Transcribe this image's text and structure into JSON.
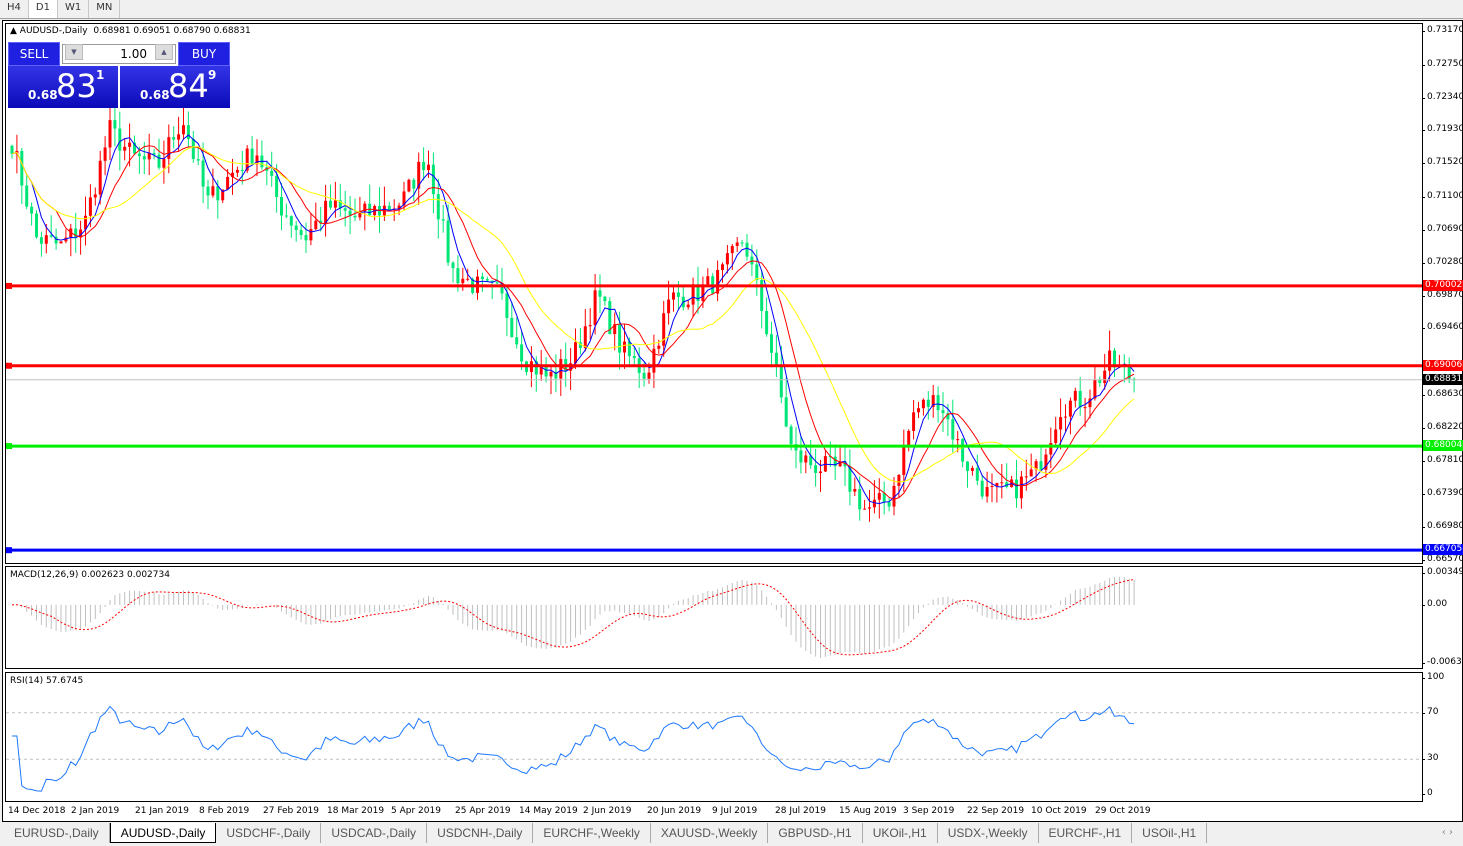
{
  "timeframes": [
    {
      "label": "H4",
      "active": false
    },
    {
      "label": "D1",
      "active": true
    },
    {
      "label": "W1",
      "active": false
    },
    {
      "label": "MN",
      "active": false
    }
  ],
  "chart_header": {
    "symbol": "AUDUSD-,Daily",
    "ohlc": "0.68981 0.69051 0.68790 0.68831"
  },
  "one_click": {
    "sell_label": "SELL",
    "buy_label": "BUY",
    "lot": "1.00",
    "sell_prefix": "0.68",
    "sell_big": "83",
    "sell_pip": "1",
    "buy_prefix": "0.68",
    "buy_big": "84",
    "buy_pip": "9",
    "color": "#2020e0"
  },
  "price_axis": {
    "ticks": [
      "0.73170",
      "0.72750",
      "0.72340",
      "0.71930",
      "0.71520",
      "0.71100",
      "0.70690",
      "0.70280",
      "0.69870",
      "0.69460",
      "0.68630",
      "0.68220",
      "0.67810",
      "0.67390",
      "0.66980",
      "0.66570"
    ],
    "range": [
      0.6657,
      0.7317
    ]
  },
  "levels": [
    {
      "price": 0.70002,
      "label": "0.70002",
      "color": "#ff0000"
    },
    {
      "price": 0.69006,
      "label": "0.69006",
      "color": "#ff0000"
    },
    {
      "price": 0.68004,
      "label": "0.68004",
      "color": "#00ee00"
    },
    {
      "price": 0.66705,
      "label": "0.66705",
      "color": "#0000ff"
    }
  ],
  "current_price": {
    "price": 0.68831,
    "label": "0.68831"
  },
  "macd": {
    "label": "MACD(12,26,9) 0.002623 0.002734",
    "ticks": [
      "0.00349",
      "0.00",
      "-0.00637"
    ],
    "range": [
      -0.00637,
      0.00349
    ]
  },
  "rsi": {
    "label": "RSI(14) 57.6745",
    "ticks": [
      "100",
      "70",
      "30",
      "0"
    ],
    "levels": [
      70,
      30
    ],
    "color": "#1e78ff"
  },
  "dates": [
    "14 Dec 2018",
    "2 Jan 2019",
    "21 Jan 2019",
    "8 Feb 2019",
    "27 Feb 2019",
    "18 Mar 2019",
    "5 Apr 2019",
    "25 Apr 2019",
    "14 May 2019",
    "2 Jun 2019",
    "20 Jun 2019",
    "9 Jul 2019",
    "28 Jul 2019",
    "15 Aug 2019",
    "3 Sep 2019",
    "22 Sep 2019",
    "10 Oct 2019",
    "29 Oct 2019"
  ],
  "chart_data": {
    "type": "candlestick",
    "symbol": "AUDUSD",
    "timeframe": "Daily",
    "weekly_closes_approx": [
      0.718,
      0.706,
      0.705,
      0.708,
      0.7195,
      0.716,
      0.715,
      0.721,
      0.7105,
      0.714,
      0.717,
      0.71,
      0.706,
      0.71,
      0.7085,
      0.7095,
      0.7105,
      0.7165,
      0.702,
      0.7,
      0.699,
      0.691,
      0.6885,
      0.691,
      0.699,
      0.692,
      0.689,
      0.6985,
      0.699,
      0.701,
      0.706,
      0.694,
      0.679,
      0.6775,
      0.677,
      0.672,
      0.6735,
      0.6845,
      0.686,
      0.6785,
      0.674,
      0.6745,
      0.677,
      0.685,
      0.686,
      0.6905,
      0.6883
    ],
    "up_color": "#ff0000",
    "down_color": "#00e676",
    "ma_colors": [
      "#0000ff",
      "#ff0000",
      "#ffff00"
    ]
  },
  "tabs": [
    {
      "label": "EURUSD-,Daily",
      "active": false
    },
    {
      "label": "AUDUSD-,Daily",
      "active": true
    },
    {
      "label": "USDCHF-,Daily",
      "active": false
    },
    {
      "label": "USDCAD-,Daily",
      "active": false
    },
    {
      "label": "USDCNH-,Daily",
      "active": false
    },
    {
      "label": "EURCHF-,Weekly",
      "active": false
    },
    {
      "label": "XAUUSD-,Weekly",
      "active": false
    },
    {
      "label": "GBPUSD-,H1",
      "active": false
    },
    {
      "label": "UKOil-,H1",
      "active": false
    },
    {
      "label": "USDX-,Weekly",
      "active": false
    },
    {
      "label": "EURCHF-,H1",
      "active": false
    },
    {
      "label": "USOil-,H1",
      "active": false
    }
  ],
  "scroll_arrows": "‹ ›"
}
